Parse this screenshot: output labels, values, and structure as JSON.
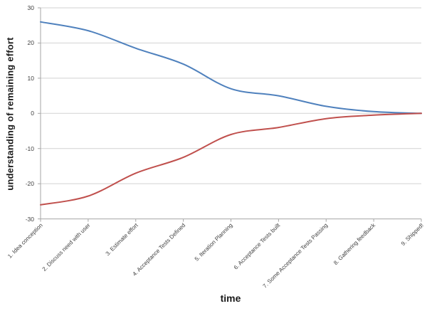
{
  "chart_data": {
    "type": "line",
    "title": "",
    "xlabel": "time",
    "ylabel": "understanding of remaining effort",
    "ylim": [
      -30,
      30
    ],
    "yticks": [
      30,
      20,
      10,
      0,
      -10,
      -20,
      -30
    ],
    "categories": [
      "1. Idea conception",
      "2. Discuss need with user",
      "3. Estimate effort",
      "4. Acceptance Tests Defined",
      "5. Iteration Planning",
      "6. Acceptance Tests built",
      "7. Some Acceptance Tests Passing",
      "8. Gathering feedback",
      "9. Shipped!"
    ],
    "series": [
      {
        "name": "blue-line",
        "color": "#4F81BD",
        "values": [
          26,
          23.5,
          18.5,
          14,
          7,
          5,
          2,
          0.5,
          0
        ]
      },
      {
        "name": "red-line",
        "color": "#C0504D",
        "values": [
          -26,
          -23.5,
          -17,
          -12.5,
          -6,
          -4,
          -1.5,
          -0.5,
          0
        ]
      }
    ],
    "grid": true,
    "legend": "none",
    "line_style": "smooth"
  },
  "colors": {
    "background": "#FFFFFF",
    "gridline": "#D2D2D2",
    "axis": "#A6A6A6",
    "tick_text": "#404040",
    "title_text": "#1A1A1A"
  }
}
